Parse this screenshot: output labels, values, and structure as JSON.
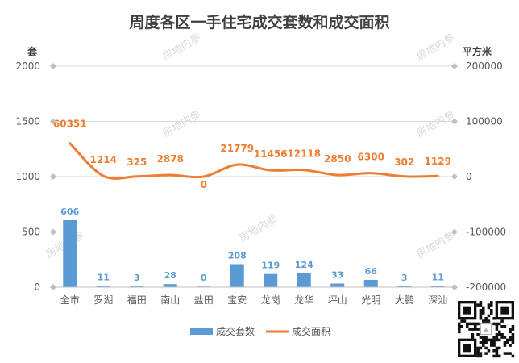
{
  "chart_data": {
    "type": "bar",
    "title": "周度各区一手住宅成交套数和成交面积",
    "left_unit": "套",
    "right_unit": "平方米",
    "categories": [
      "全市",
      "罗湖",
      "福田",
      "南山",
      "盐田",
      "宝安",
      "龙岗",
      "龙华",
      "坪山",
      "光明",
      "大鹏",
      "深汕"
    ],
    "series": [
      {
        "name": "成交套数",
        "type": "bar",
        "axis": "left",
        "color": "#5b9bd5",
        "values": [
          606,
          11,
          3,
          28,
          0,
          208,
          119,
          124,
          33,
          66,
          3,
          11
        ]
      },
      {
        "name": "成交面积",
        "type": "line",
        "axis": "right",
        "color": "#ed7d31",
        "values": [
          60351,
          1214,
          325,
          2878,
          0,
          21779,
          11456,
          12118,
          2850,
          6300,
          302,
          1129
        ]
      }
    ],
    "ylim_left": [
      0,
      2000
    ],
    "yticks_left": [
      0,
      500,
      1000,
      1500,
      2000
    ],
    "ylim_right": [
      -200000,
      200000
    ],
    "yticks_right": [
      -200000,
      -100000,
      0,
      100000,
      200000
    ],
    "grid": true,
    "legend_position": "bottom"
  },
  "watermark": "房地内参"
}
